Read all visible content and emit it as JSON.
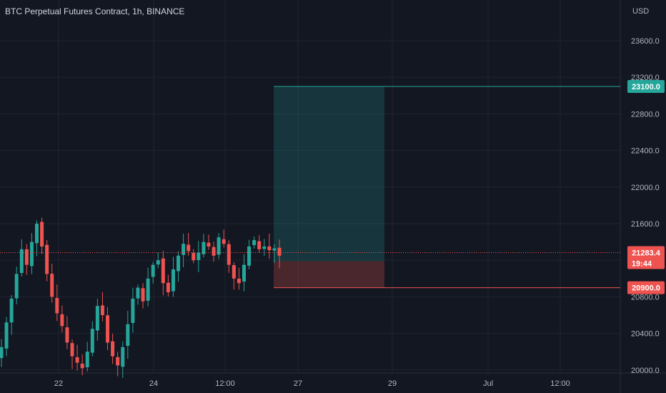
{
  "header": {
    "title": "BTC Perpetual Futures Contract, 1h, BINANCE"
  },
  "colors": {
    "background": "#131722",
    "grid": "#1f2430",
    "up": "#26a69a",
    "down": "#ef5350",
    "target_zone": "#26a69a",
    "stop_zone": "#ef5350",
    "current_price_line": "#ef5350"
  },
  "chart_data": {
    "type": "candlestick",
    "title": "BTC Perpetual Futures Contract, 1h, BINANCE",
    "currency": "USD",
    "grid": true,
    "ylim": [
      19950,
      24080
    ],
    "y_ticks": [
      20000,
      20400,
      20800,
      21200,
      21600,
      22000,
      22400,
      22800,
      23200,
      23600
    ],
    "y_tick_labels": [
      "20000.0",
      "20400.0",
      "20800.0",
      "21200.0",
      "21600.0",
      "22000.0",
      "22400.0",
      "22800.0",
      "23200.0",
      "23600.0"
    ],
    "x_tick_labels": [
      "22",
      "24",
      "12:00",
      "27",
      "29",
      "Jul",
      "12:00"
    ],
    "current_price": 21283.4,
    "current_price_label": "21283.4",
    "countdown": "19:44",
    "position": {
      "target": 23100.0,
      "target_label": "23100.0",
      "stop": 20900.0,
      "stop_label": "20900.0",
      "entry": 21190
    },
    "candles_approx_close": [
      20250,
      20520,
      20780,
      21050,
      21320,
      21150,
      21400,
      21600,
      21350,
      21050,
      20800,
      20620,
      20480,
      20300,
      20150,
      20080,
      20020,
      20200,
      20450,
      20700,
      20600,
      20300,
      20150,
      20050,
      20250,
      20500,
      20780,
      20900,
      20750,
      21000,
      21150,
      21200,
      20950,
      20850,
      21100,
      21250,
      21380,
      21300,
      21200,
      21280,
      21400,
      21350,
      21250,
      21450,
      21380,
      21150,
      21000,
      20950,
      21150,
      21350,
      21420,
      21320,
      21350,
      21310,
      21330,
      21250
    ]
  }
}
